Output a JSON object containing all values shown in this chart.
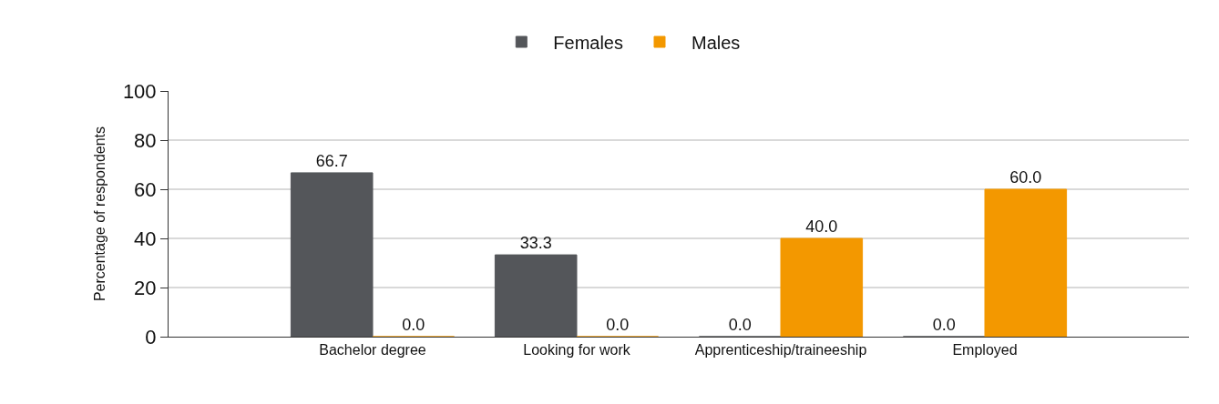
{
  "chart_data": {
    "type": "bar",
    "ylabel": "Percentage of respondents",
    "categories": [
      "Bachelor degree",
      "Looking for work",
      "Apprenticeship/traineeship",
      "Employed"
    ],
    "series": [
      {
        "name": "Females",
        "color": "#54565a",
        "values": [
          66.7,
          33.3,
          0.0,
          0.0
        ],
        "value_labels": [
          "66.7",
          "33.3",
          "0.0",
          "0.0"
        ]
      },
      {
        "name": "Males",
        "color": "#f39800",
        "values": [
          0.0,
          0.0,
          40.0,
          60.0
        ],
        "value_labels": [
          "0.0",
          "0.0",
          "40.0",
          "60.0"
        ]
      }
    ],
    "ylim": [
      0,
      100
    ],
    "yticks": [
      0,
      20,
      40,
      60,
      80,
      100
    ],
    "grid": "y",
    "legend": "top"
  }
}
